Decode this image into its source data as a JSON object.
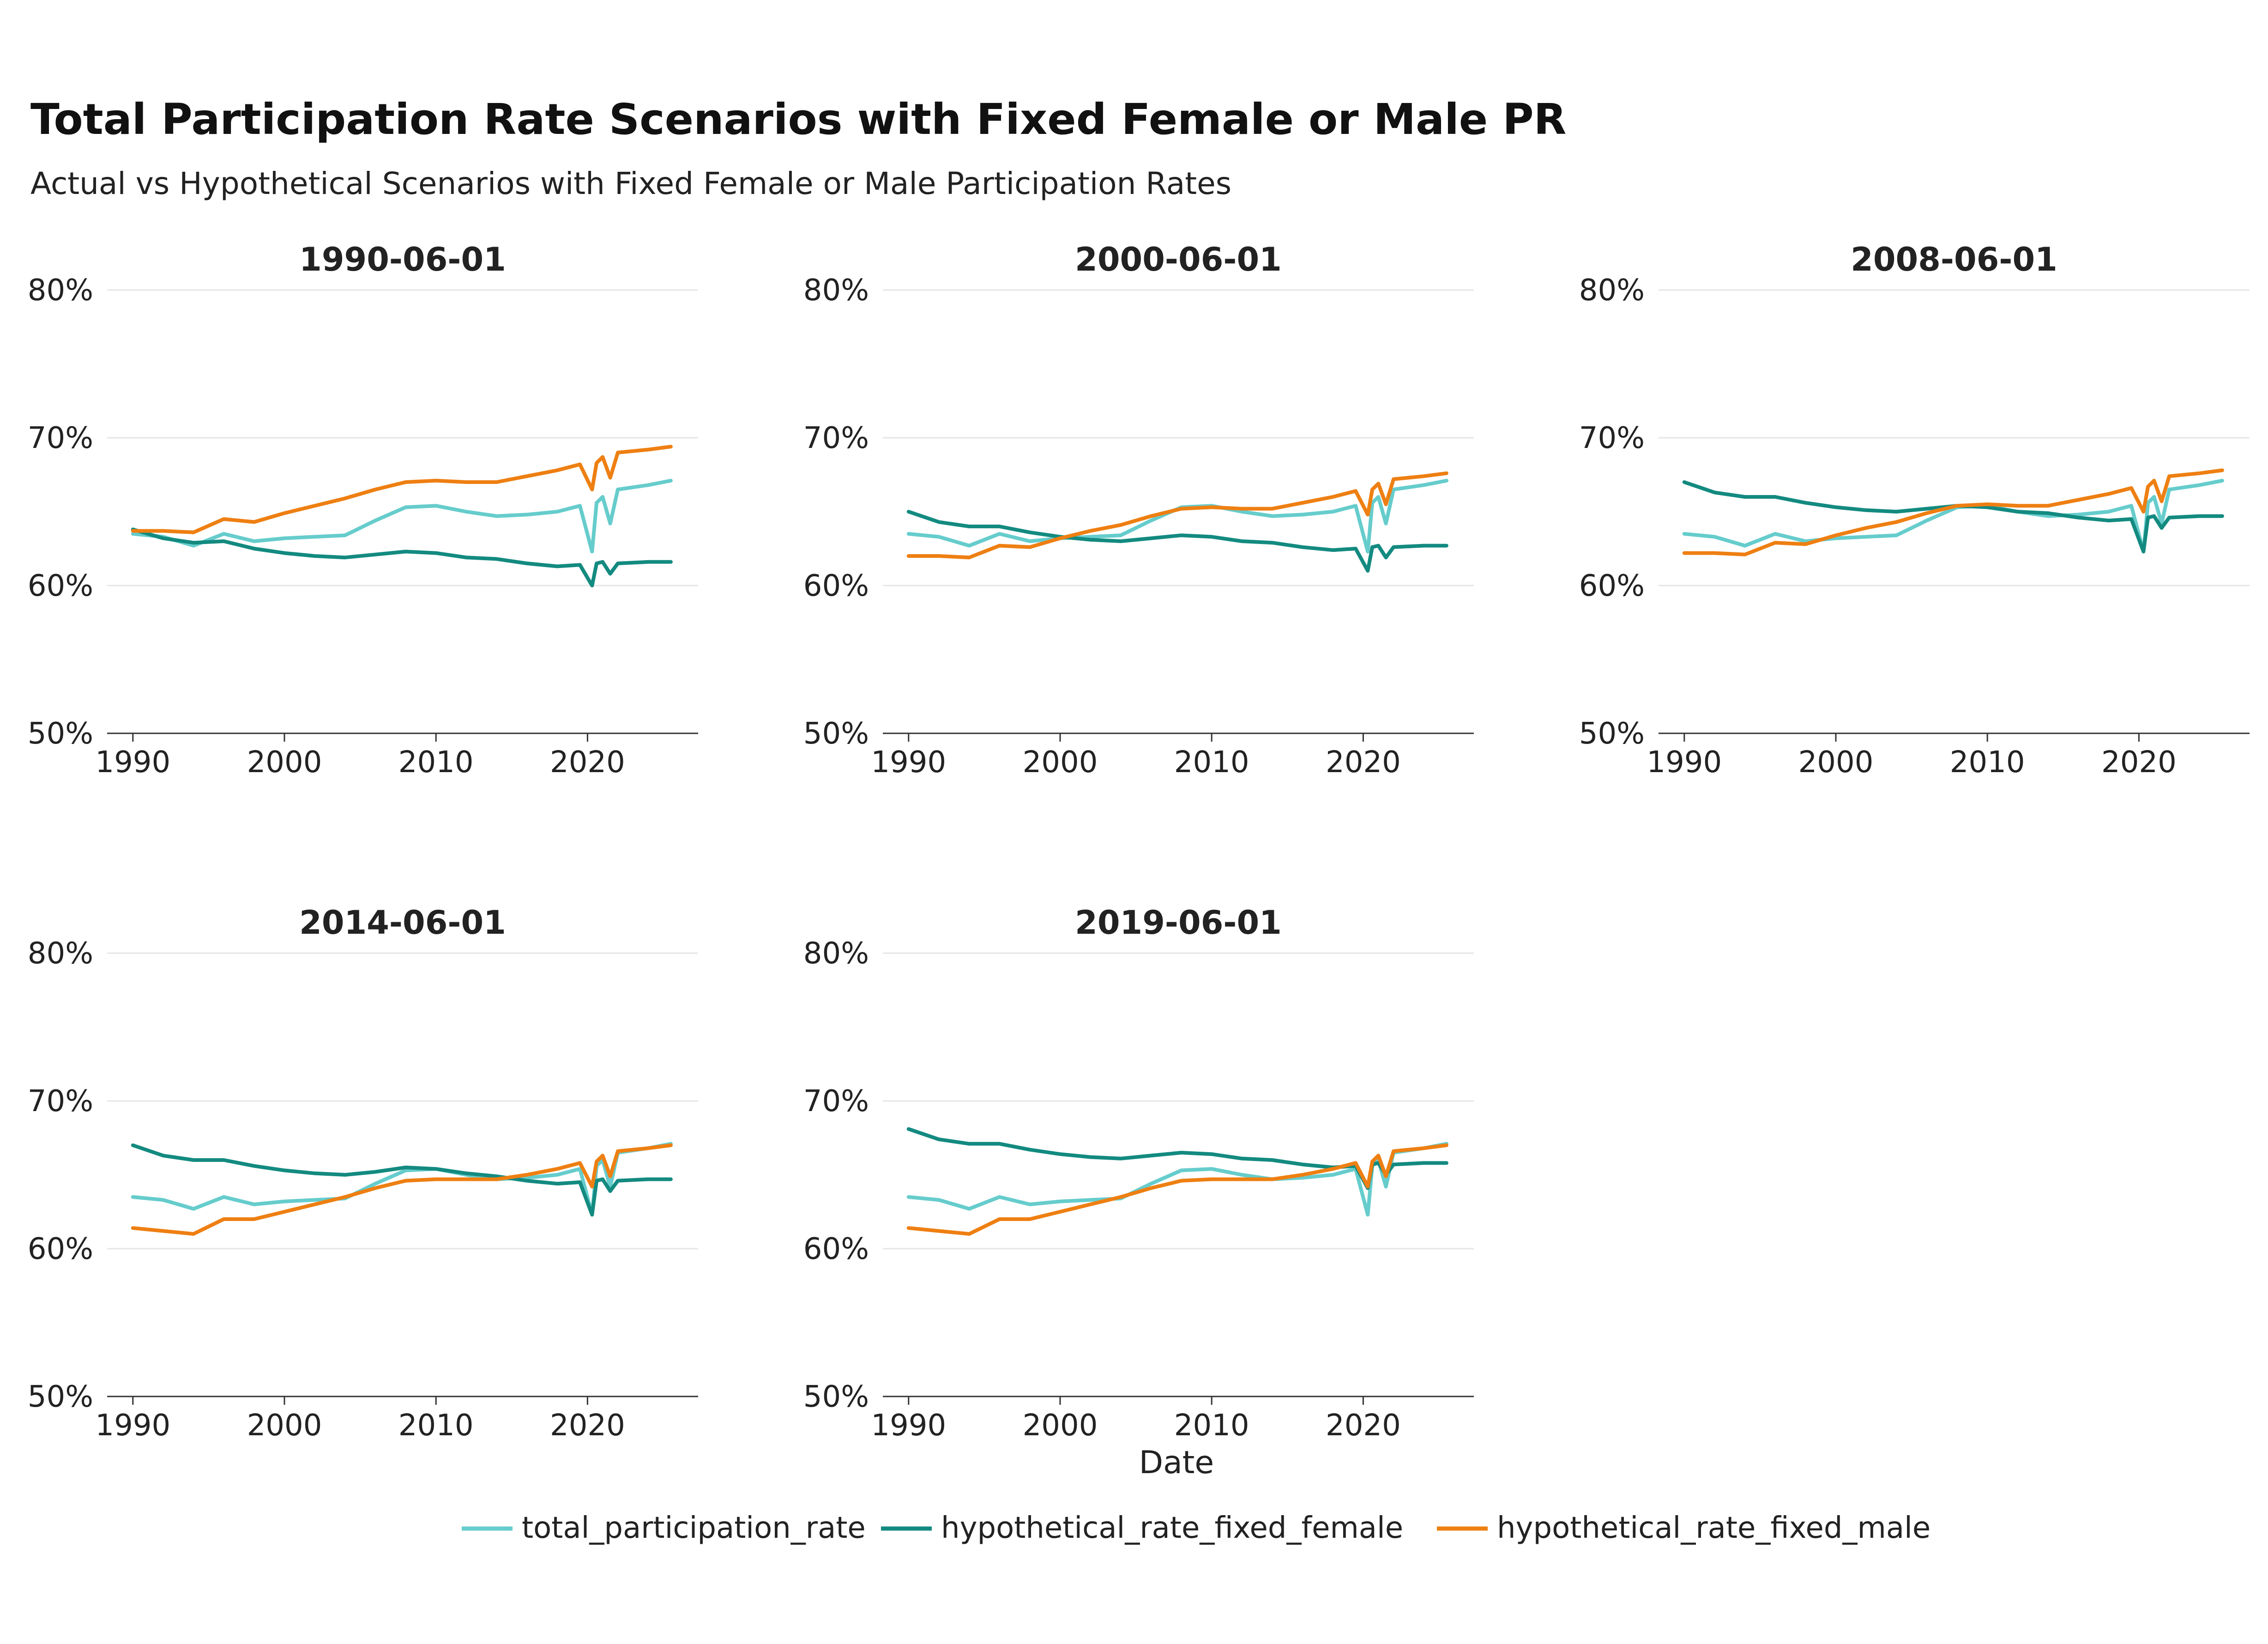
{
  "chart_data": {
    "type": "line",
    "title": "Total Participation Rate Scenarios with Fixed Female or Male PR",
    "subtitle": "Actual vs Hypothetical Scenarios with Fixed Female or Male Participation Rates",
    "xlabel": "Date",
    "ylabel": "",
    "xlim": [
      1988.3,
      2027.3
    ],
    "ylim": [
      0.5,
      0.8
    ],
    "x_ticks": [
      1990,
      2000,
      2010,
      2020
    ],
    "x_tick_labels": [
      "1990",
      "2000",
      "2010",
      "2020"
    ],
    "y_ticks": [
      0.5,
      0.6,
      0.7,
      0.8
    ],
    "y_tick_labels": [
      "50%",
      "60%",
      "70%",
      "80%"
    ],
    "grid": "horizontal",
    "legend_position": "bottom",
    "colors": {
      "total_participation_rate": "#66cccc",
      "hypothetical_rate_fixed_female": "#138a80",
      "hypothetical_rate_fixed_male": "#ee7f12"
    },
    "legend": [
      "total_participation_rate",
      "hypothetical_rate_fixed_female",
      "hypothetical_rate_fixed_male"
    ],
    "x": [
      1990,
      1992,
      1994,
      1996,
      1998,
      2000,
      2002,
      2004,
      2006,
      2008,
      2010,
      2012,
      2014,
      2016,
      2018,
      2019.5,
      2020.3,
      2020.6,
      2021,
      2021.5,
      2022,
      2024,
      2025.5
    ],
    "total_participation_rate": [
      0.635,
      0.633,
      0.627,
      0.635,
      0.63,
      0.632,
      0.633,
      0.634,
      0.644,
      0.653,
      0.654,
      0.65,
      0.647,
      0.648,
      0.65,
      0.654,
      0.623,
      0.656,
      0.66,
      0.642,
      0.665,
      0.668,
      0.671
    ],
    "panels": [
      {
        "title": "1990-06-01",
        "series": [
          {
            "name": "total_participation_rate",
            "values": [
              0.635,
              0.633,
              0.627,
              0.635,
              0.63,
              0.632,
              0.633,
              0.634,
              0.644,
              0.653,
              0.654,
              0.65,
              0.647,
              0.648,
              0.65,
              0.654,
              0.623,
              0.656,
              0.66,
              0.642,
              0.665,
              0.668,
              0.671
            ]
          },
          {
            "name": "hypothetical_rate_fixed_female",
            "values": [
              0.638,
              0.632,
              0.629,
              0.63,
              0.625,
              0.622,
              0.62,
              0.619,
              0.621,
              0.623,
              0.622,
              0.619,
              0.618,
              0.615,
              0.613,
              0.614,
              0.6,
              0.615,
              0.616,
              0.608,
              0.615,
              0.616,
              0.616
            ]
          },
          {
            "name": "hypothetical_rate_fixed_male",
            "values": [
              0.637,
              0.637,
              0.636,
              0.645,
              0.643,
              0.649,
              0.654,
              0.659,
              0.665,
              0.67,
              0.671,
              0.67,
              0.67,
              0.674,
              0.678,
              0.682,
              0.665,
              0.683,
              0.687,
              0.673,
              0.69,
              0.692,
              0.694
            ]
          }
        ]
      },
      {
        "title": "2000-06-01",
        "series": [
          {
            "name": "total_participation_rate",
            "values": [
              0.635,
              0.633,
              0.627,
              0.635,
              0.63,
              0.632,
              0.633,
              0.634,
              0.644,
              0.653,
              0.654,
              0.65,
              0.647,
              0.648,
              0.65,
              0.654,
              0.623,
              0.656,
              0.66,
              0.642,
              0.665,
              0.668,
              0.671
            ]
          },
          {
            "name": "hypothetical_rate_fixed_female",
            "values": [
              0.65,
              0.643,
              0.64,
              0.64,
              0.636,
              0.633,
              0.631,
              0.63,
              0.632,
              0.634,
              0.633,
              0.63,
              0.629,
              0.626,
              0.624,
              0.625,
              0.61,
              0.626,
              0.627,
              0.619,
              0.626,
              0.627,
              0.627
            ]
          },
          {
            "name": "hypothetical_rate_fixed_male",
            "values": [
              0.62,
              0.62,
              0.619,
              0.627,
              0.626,
              0.632,
              0.637,
              0.641,
              0.647,
              0.652,
              0.653,
              0.652,
              0.652,
              0.656,
              0.66,
              0.664,
              0.648,
              0.665,
              0.669,
              0.655,
              0.672,
              0.674,
              0.676
            ]
          }
        ]
      },
      {
        "title": "2008-06-01",
        "series": [
          {
            "name": "total_participation_rate",
            "values": [
              0.635,
              0.633,
              0.627,
              0.635,
              0.63,
              0.632,
              0.633,
              0.634,
              0.644,
              0.653,
              0.654,
              0.65,
              0.647,
              0.648,
              0.65,
              0.654,
              0.623,
              0.656,
              0.66,
              0.642,
              0.665,
              0.668,
              0.671
            ]
          },
          {
            "name": "hypothetical_rate_fixed_female",
            "values": [
              0.67,
              0.663,
              0.66,
              0.66,
              0.656,
              0.653,
              0.651,
              0.65,
              0.652,
              0.654,
              0.653,
              0.65,
              0.649,
              0.646,
              0.644,
              0.645,
              0.623,
              0.646,
              0.647,
              0.639,
              0.646,
              0.647,
              0.647
            ]
          },
          {
            "name": "hypothetical_rate_fixed_male",
            "values": [
              0.622,
              0.622,
              0.621,
              0.629,
              0.628,
              0.634,
              0.639,
              0.643,
              0.649,
              0.654,
              0.655,
              0.654,
              0.654,
              0.658,
              0.662,
              0.666,
              0.65,
              0.667,
              0.671,
              0.657,
              0.674,
              0.676,
              0.678
            ]
          }
        ]
      },
      {
        "title": "2014-06-01",
        "series": [
          {
            "name": "total_participation_rate",
            "values": [
              0.635,
              0.633,
              0.627,
              0.635,
              0.63,
              0.632,
              0.633,
              0.634,
              0.644,
              0.653,
              0.654,
              0.65,
              0.647,
              0.648,
              0.65,
              0.654,
              0.623,
              0.656,
              0.66,
              0.642,
              0.665,
              0.668,
              0.671
            ]
          },
          {
            "name": "hypothetical_rate_fixed_female",
            "values": [
              0.67,
              0.663,
              0.66,
              0.66,
              0.656,
              0.653,
              0.651,
              0.65,
              0.652,
              0.655,
              0.654,
              0.651,
              0.649,
              0.646,
              0.644,
              0.645,
              0.623,
              0.646,
              0.647,
              0.639,
              0.646,
              0.647,
              0.647
            ]
          },
          {
            "name": "hypothetical_rate_fixed_male",
            "values": [
              0.614,
              0.612,
              0.61,
              0.62,
              0.62,
              0.625,
              0.63,
              0.635,
              0.641,
              0.646,
              0.647,
              0.647,
              0.647,
              0.65,
              0.654,
              0.658,
              0.642,
              0.659,
              0.663,
              0.649,
              0.666,
              0.668,
              0.67
            ]
          }
        ]
      },
      {
        "title": "2019-06-01",
        "series": [
          {
            "name": "total_participation_rate",
            "values": [
              0.635,
              0.633,
              0.627,
              0.635,
              0.63,
              0.632,
              0.633,
              0.634,
              0.644,
              0.653,
              0.654,
              0.65,
              0.647,
              0.648,
              0.65,
              0.654,
              0.623,
              0.656,
              0.66,
              0.642,
              0.665,
              0.668,
              0.671
            ]
          },
          {
            "name": "hypothetical_rate_fixed_female",
            "values": [
              0.681,
              0.674,
              0.671,
              0.671,
              0.667,
              0.664,
              0.662,
              0.661,
              0.663,
              0.665,
              0.664,
              0.661,
              0.66,
              0.657,
              0.655,
              0.656,
              0.641,
              0.657,
              0.658,
              0.65,
              0.657,
              0.658,
              0.658
            ]
          },
          {
            "name": "hypothetical_rate_fixed_male",
            "values": [
              0.614,
              0.612,
              0.61,
              0.62,
              0.62,
              0.625,
              0.63,
              0.635,
              0.641,
              0.646,
              0.647,
              0.647,
              0.647,
              0.65,
              0.654,
              0.658,
              0.642,
              0.659,
              0.663,
              0.649,
              0.666,
              0.668,
              0.67
            ]
          }
        ]
      }
    ]
  }
}
